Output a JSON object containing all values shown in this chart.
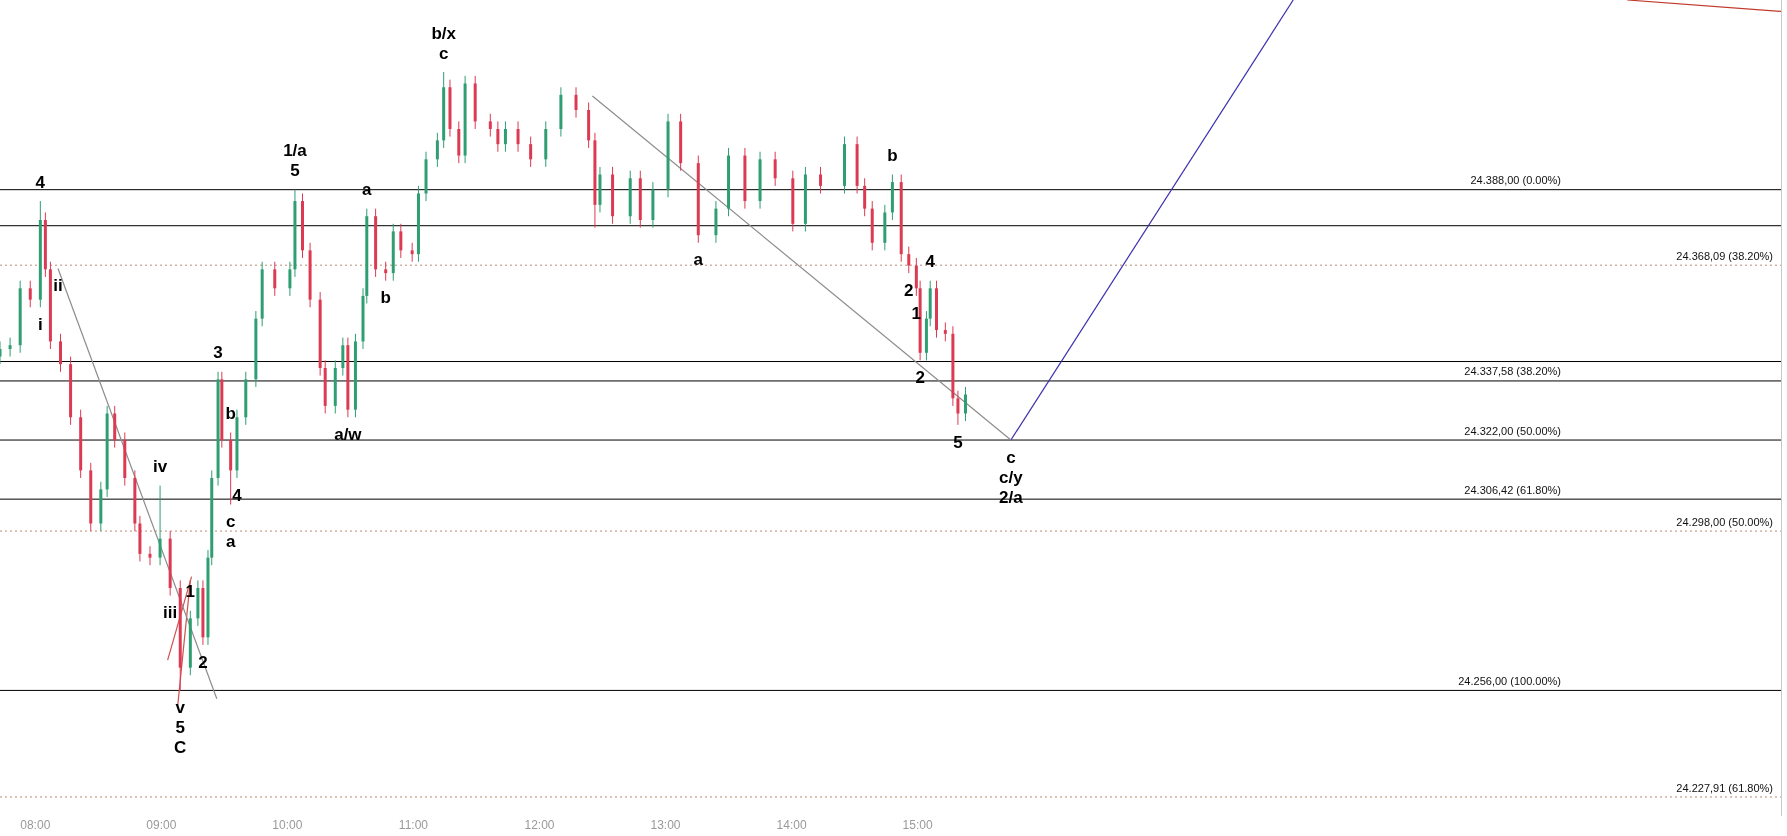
{
  "chart_data": {
    "type": "candlestick",
    "xlim": [
      7.72,
      21.85
    ],
    "ylim": [
      24223,
      24438
    ],
    "xticks": [
      {
        "value": 8,
        "label": "08:00"
      },
      {
        "value": 9,
        "label": "09:00"
      },
      {
        "value": 10,
        "label": "10:00"
      },
      {
        "value": 11,
        "label": "11:00"
      },
      {
        "value": 12,
        "label": "12:00"
      },
      {
        "value": 13,
        "label": "13:00"
      },
      {
        "value": 14,
        "label": "14:00"
      },
      {
        "value": 15,
        "label": "15:00"
      }
    ],
    "tick_labels": "x",
    "grid": false,
    "legend": false,
    "x": [
      7.72,
      7.8,
      7.88,
      7.96,
      8.04,
      8.08,
      8.12,
      8.2,
      8.28,
      8.36,
      8.44,
      8.52,
      8.57,
      8.63,
      8.71,
      8.79,
      8.83,
      8.91,
      8.99,
      9.07,
      9.15,
      9.23,
      9.29,
      9.33,
      9.37,
      9.4,
      9.45,
      9.48,
      9.55,
      9.6,
      9.67,
      9.75,
      9.8,
      9.9,
      10.02,
      10.06,
      10.12,
      10.18,
      10.26,
      10.3,
      10.38,
      10.44,
      10.48,
      10.54,
      10.6,
      10.63,
      10.7,
      10.78,
      10.84,
      10.9,
      10.99,
      11.04,
      11.1,
      11.19,
      11.24,
      11.29,
      11.36,
      11.41,
      11.49,
      11.61,
      11.67,
      11.73,
      11.83,
      11.93,
      12.05,
      12.17,
      12.29,
      12.39,
      12.44,
      12.48,
      12.58,
      12.72,
      12.8,
      12.9,
      13.02,
      13.12,
      13.26,
      13.4,
      13.5,
      13.63,
      13.75,
      13.87,
      14.01,
      14.11,
      14.23,
      14.42,
      14.52,
      14.58,
      14.64,
      14.74,
      14.8,
      14.87,
      14.93,
      14.99,
      15.02,
      15.07,
      15.1,
      15.15,
      15.22,
      15.28,
      15.32,
      15.38
    ],
    "ohlc": [
      [
        24344,
        24348,
        24342,
        24346
      ],
      [
        24346,
        24349,
        24344,
        24347
      ],
      [
        24347,
        24364,
        24345,
        24362
      ],
      [
        24362,
        24364,
        24357,
        24359
      ],
      [
        24359,
        24385,
        24357,
        24380
      ],
      [
        24380,
        24382,
        24365,
        24367
      ],
      [
        24367,
        24369,
        24346,
        24348
      ],
      [
        24348,
        24350,
        24340,
        24342
      ],
      [
        24342,
        24344,
        24326,
        24328
      ],
      [
        24328,
        24330,
        24312,
        24314
      ],
      [
        24314,
        24316,
        24298,
        24300
      ],
      [
        24300,
        24311,
        24298,
        24309
      ],
      [
        24309,
        24331,
        24307,
        24329
      ],
      [
        24329,
        24331,
        24320,
        24322
      ],
      [
        24322,
        24324,
        24310,
        24312
      ],
      [
        24312,
        24314,
        24298,
        24300
      ],
      [
        24300,
        24302,
        24290,
        24292
      ],
      [
        24292,
        24294,
        24289,
        24291
      ],
      [
        24291,
        24310,
        24289,
        24296
      ],
      [
        24296,
        24298,
        24281,
        24283
      ],
      [
        24283,
        24285,
        24256,
        24262
      ],
      [
        24262,
        24277,
        24260,
        24275
      ],
      [
        24275,
        24285,
        24273,
        24283
      ],
      [
        24283,
        24285,
        24268,
        24270
      ],
      [
        24270,
        24293,
        24268,
        24291
      ],
      [
        24291,
        24314,
        24289,
        24312
      ],
      [
        24312,
        24340,
        24310,
        24338
      ],
      [
        24338,
        24340,
        24320,
        24322
      ],
      [
        24322,
        24324,
        24305,
        24314
      ],
      [
        24314,
        24330,
        24312,
        24328
      ],
      [
        24328,
        24340,
        24326,
        24338
      ],
      [
        24338,
        24356,
        24336,
        24354
      ],
      [
        24354,
        24369,
        24352,
        24367
      ],
      [
        24367,
        24369,
        24360,
        24362
      ],
      [
        24362,
        24369,
        24360,
        24367
      ],
      [
        24367,
        24388,
        24365,
        24385
      ],
      [
        24385,
        24387,
        24370,
        24372
      ],
      [
        24372,
        24374,
        24357,
        24359
      ],
      [
        24359,
        24361,
        24339,
        24341
      ],
      [
        24341,
        24343,
        24329,
        24331
      ],
      [
        24331,
        24343,
        24329,
        24341
      ],
      [
        24341,
        24349,
        24339,
        24347
      ],
      [
        24347,
        24349,
        24328,
        24330
      ],
      [
        24330,
        24350,
        24328,
        24348
      ],
      [
        24348,
        24362,
        24346,
        24360
      ],
      [
        24360,
        24383,
        24358,
        24381
      ],
      [
        24381,
        24383,
        24365,
        24367
      ],
      [
        24367,
        24369,
        24364,
        24366
      ],
      [
        24366,
        24379,
        24364,
        24377
      ],
      [
        24377,
        24379,
        24370,
        24372
      ],
      [
        24372,
        24374,
        24369,
        24371
      ],
      [
        24371,
        24389,
        24369,
        24387
      ],
      [
        24387,
        24398,
        24385,
        24396
      ],
      [
        24396,
        24403,
        24394,
        24401
      ],
      [
        24401,
        24419,
        24399,
        24415
      ],
      [
        24415,
        24417,
        24402,
        24404
      ],
      [
        24404,
        24406,
        24395,
        24397
      ],
      [
        24397,
        24418,
        24395,
        24416
      ],
      [
        24416,
        24418,
        24404,
        24406
      ],
      [
        24406,
        24408,
        24402,
        24404
      ],
      [
        24404,
        24406,
        24398,
        24400
      ],
      [
        24400,
        24406,
        24398,
        24404
      ],
      [
        24404,
        24406,
        24398,
        24400
      ],
      [
        24400,
        24402,
        24394,
        24396
      ],
      [
        24396,
        24406,
        24394,
        24404
      ],
      [
        24404,
        24415,
        24402,
        24413
      ],
      [
        24413,
        24415,
        24407,
        24409
      ],
      [
        24409,
        24411,
        24399,
        24401
      ],
      [
        24401,
        24403,
        24378,
        24384
      ],
      [
        24384,
        24394,
        24382,
        24392
      ],
      [
        24392,
        24394,
        24379,
        24381
      ],
      [
        24381,
        24393,
        24379,
        24391
      ],
      [
        24391,
        24393,
        24378,
        24380
      ],
      [
        24380,
        24390,
        24378,
        24388
      ],
      [
        24388,
        24408,
        24386,
        24406
      ],
      [
        24406,
        24408,
        24393,
        24395
      ],
      [
        24395,
        24397,
        24374,
        24376
      ],
      [
        24376,
        24385,
        24374,
        24383
      ],
      [
        24383,
        24399,
        24381,
        24397
      ],
      [
        24397,
        24399,
        24383,
        24385
      ],
      [
        24385,
        24398,
        24383,
        24396
      ],
      [
        24396,
        24398,
        24389,
        24391
      ],
      [
        24391,
        24393,
        24377,
        24379
      ],
      [
        24379,
        24394,
        24377,
        24392
      ],
      [
        24392,
        24394,
        24387,
        24389
      ],
      [
        24389,
        24402,
        24387,
        24400
      ],
      [
        24400,
        24402,
        24387,
        24389
      ],
      [
        24389,
        24391,
        24381,
        24383
      ],
      [
        24383,
        24385,
        24372,
        24374
      ],
      [
        24374,
        24384,
        24372,
        24382
      ],
      [
        24382,
        24392,
        24380,
        24390
      ],
      [
        24390,
        24392,
        24369,
        24371
      ],
      [
        24371,
        24373,
        24366,
        24368
      ],
      [
        24368,
        24370,
        24360,
        24362
      ],
      [
        24362,
        24364,
        24343,
        24345
      ],
      [
        24345,
        24356,
        24343,
        24354
      ],
      [
        24354,
        24364,
        24352,
        24362
      ],
      [
        24362,
        24364,
        24349,
        24351
      ],
      [
        24351,
        24353,
        24348,
        24350
      ],
      [
        24350,
        24352,
        24331,
        24333
      ],
      [
        24333,
        24335,
        24326,
        24329
      ],
      [
        24329,
        24336,
        24327,
        24334
      ]
    ],
    "colors": [
      "#2f9e72",
      "#2f9e72",
      "#2f9e72",
      "#dc3a52",
      "#2f9e72",
      "#dc3a52",
      "#dc3a52",
      "#dc3a52",
      "#dc3a52",
      "#dc3a52",
      "#dc3a52",
      "#2f9e72",
      "#2f9e72",
      "#dc3a52",
      "#dc3a52",
      "#dc3a52",
      "#dc3a52",
      "#dc3a52",
      "#2f9e72",
      "#dc3a52",
      "#dc3a52",
      "#2f9e72",
      "#2f9e72",
      "#dc3a52",
      "#2f9e72",
      "#2f9e72",
      "#2f9e72",
      "#dc3a52",
      "#dc3a52",
      "#2f9e72",
      "#2f9e72",
      "#2f9e72",
      "#2f9e72",
      "#dc3a52",
      "#2f9e72",
      "#2f9e72",
      "#dc3a52",
      "#dc3a52",
      "#dc3a52",
      "#dc3a52",
      "#2f9e72",
      "#2f9e72",
      "#dc3a52",
      "#2f9e72",
      "#2f9e72",
      "#2f9e72",
      "#dc3a52",
      "#dc3a52",
      "#2f9e72",
      "#dc3a52",
      "#dc3a52",
      "#2f9e72",
      "#2f9e72",
      "#2f9e72",
      "#2f9e72",
      "#dc3a52",
      "#dc3a52",
      "#2f9e72",
      "#dc3a52",
      "#dc3a52",
      "#dc3a52",
      "#2f9e72",
      "#dc3a52",
      "#dc3a52",
      "#2f9e72",
      "#2f9e72",
      "#dc3a52",
      "#dc3a52",
      "#dc3a52",
      "#2f9e72",
      "#dc3a52",
      "#2f9e72",
      "#dc3a52",
      "#2f9e72",
      "#2f9e72",
      "#dc3a52",
      "#dc3a52",
      "#2f9e72",
      "#2f9e72",
      "#dc3a52",
      "#2f9e72",
      "#dc3a52",
      "#dc3a52",
      "#2f9e72",
      "#dc3a52",
      "#2f9e72",
      "#dc3a52",
      "#dc3a52",
      "#dc3a52",
      "#2f9e72",
      "#2f9e72",
      "#dc3a52",
      "#dc3a52",
      "#dc3a52",
      "#dc3a52",
      "#2f9e72",
      "#2f9e72",
      "#dc3a52",
      "#dc3a52",
      "#dc3a52",
      "#dc3a52",
      "#2f9e72"
    ],
    "series": [
      {
        "type": "line",
        "color": "#8c8c8c",
        "x": [
          8.18,
          9.44
        ],
        "values": [
          24367.2,
          24253.8
        ]
      },
      {
        "type": "line",
        "color": "#8c8c8c",
        "x": [
          12.42,
          15.74
        ],
        "values": [
          24412.7,
          24322
        ]
      },
      {
        "type": "line",
        "color": "#3b2fb0",
        "x": [
          15.74,
          17.98
        ],
        "values": [
          24322,
          24438
        ]
      },
      {
        "type": "line",
        "color": "#c0392b",
        "x": [
          20.63,
          21.85
        ],
        "values": [
          24438,
          24435
        ]
      },
      {
        "type": "line",
        "color": "#d05050",
        "x": [
          9.05,
          9.24
        ],
        "values": [
          24264,
          24286
        ]
      },
      {
        "type": "line",
        "color": "#d05050",
        "x": [
          9.13,
          9.23
        ],
        "values": [
          24252,
          24285
        ]
      }
    ],
    "ref_lines": [
      {
        "axis": "y",
        "value": 24388,
        "label": "24.388,00 (0.00%)",
        "color": "#000000"
      },
      {
        "axis": "y",
        "value": 24378.5,
        "color": "#000000"
      },
      {
        "axis": "y",
        "value": 24342.7,
        "color": "#000000"
      },
      {
        "axis": "y",
        "value": 24337.58,
        "label": "24.337,58 (38.20%)",
        "color": "#000000"
      },
      {
        "axis": "y",
        "value": 24322,
        "label": "24.322,00 (50.00%)",
        "color": "#000000"
      },
      {
        "axis": "y",
        "value": 24306.42,
        "label": "24.306,42 (61.80%)",
        "color": "#000000"
      },
      {
        "axis": "y",
        "value": 24256,
        "label": "24.256,00 (100.00%)",
        "color": "#000000"
      },
      {
        "axis": "y",
        "value": 24368.09,
        "label": "24.368,09 (38.20%)",
        "color": "#b98a74",
        "line_style": "dotted"
      },
      {
        "axis": "y",
        "value": 24298,
        "label": "24.298,00 (50.00%)",
        "color": "#b98a74",
        "line_style": "dotted"
      },
      {
        "axis": "y",
        "value": 24227.91,
        "label": "24.227,91 (61.80%)",
        "color": "#b98a74",
        "line_style": "dotted"
      }
    ],
    "annotations": [
      {
        "text": "4",
        "x": 8.04,
        "y": 24385
      },
      {
        "text": "ii",
        "x": 8.18,
        "y": 24367.2
      },
      {
        "text": "i",
        "x": 8.04,
        "y": 24357
      },
      {
        "text": "1/a",
        "x": 10.06,
        "y": 24388
      },
      {
        "text": "5",
        "x": 10.06,
        "y": 24388
      },
      {
        "text": "a",
        "x": 10.63,
        "y": 24383
      },
      {
        "text": "b/x",
        "x": 11.24,
        "y": 24419
      },
      {
        "text": "c",
        "x": 11.24,
        "y": 24419
      },
      {
        "text": "b",
        "x": 10.78,
        "y": 24364
      },
      {
        "text": "3",
        "x": 9.45,
        "y": 24340
      },
      {
        "text": "b",
        "x": 9.55,
        "y": 24324
      },
      {
        "text": "a/w",
        "x": 10.48,
        "y": 24328
      },
      {
        "text": "iv",
        "x": 8.99,
        "y": 24310
      },
      {
        "text": "c",
        "x": 9.55,
        "y": 24305
      },
      {
        "text": "a",
        "x": 9.55,
        "y": 24305
      },
      {
        "text": "4",
        "x": 9.6,
        "y": 24312
      },
      {
        "text": "1",
        "x": 9.23,
        "y": 24277
      },
      {
        "text": "iii",
        "x": 9.07,
        "y": 24281
      },
      {
        "text": "2",
        "x": 9.33,
        "y": 24268
      },
      {
        "text": "v",
        "x": 9.15,
        "y": 24256
      },
      {
        "text": "5",
        "x": 9.15,
        "y": 24256
      },
      {
        "text": "C",
        "x": 9.15,
        "y": 24256
      },
      {
        "text": "b",
        "x": 14.8,
        "y": 24392
      },
      {
        "text": "a",
        "x": 13.26,
        "y": 24374
      },
      {
        "text": "2",
        "x": 14.93,
        "y": 24366
      },
      {
        "text": "4",
        "x": 15.1,
        "y": 24364
      },
      {
        "text": "1",
        "x": 14.99,
        "y": 24360
      },
      {
        "text": "2",
        "x": 15.02,
        "y": 24343
      },
      {
        "text": "5",
        "x": 15.32,
        "y": 24326
      },
      {
        "text": "c",
        "x": 15.74,
        "y": 24322
      },
      {
        "text": "c/y",
        "x": 15.74,
        "y": 24322
      },
      {
        "text": "2/a",
        "x": 15.74,
        "y": 24322
      }
    ]
  }
}
